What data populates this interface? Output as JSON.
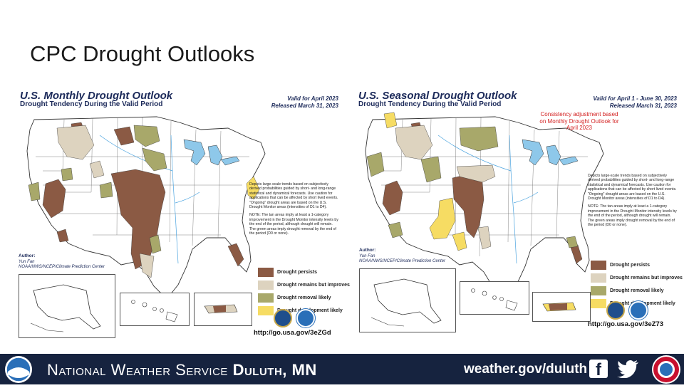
{
  "slide": {
    "title": "CPC Drought Outlooks"
  },
  "left": {
    "title": "U.S. Monthly Drought Outlook",
    "subtitle": "Drought Tendency During the Valid Period",
    "valid_line1": "Valid for April 2023",
    "valid_line2": "Released March 31, 2023",
    "notes1": "Depicts large-scale trends based on subjectively derived probabilities guided by short- and long-range statistical and dynamical forecasts. Use caution for applications that can be affected by short lived events. \"Ongoing\" drought areas are based on the U.S. Drought Monitor areas (intensities of D1 to D4).",
    "notes2": "NOTE: The tan areas imply at least a 1-category improvement in the Drought Monitor intensity levels by the end of the period, although drought will remain. The green areas imply drought removal by the end of the period (D0 or none).",
    "author_label": "Author:",
    "author_name": "Yun Fan",
    "author_org": "NOAA/NWS/NCEP/Climate Prediction Center",
    "url": "http://go.usa.gov/3eZGd"
  },
  "right": {
    "title": "U.S. Seasonal Drought Outlook",
    "subtitle": "Drought Tendency During the Valid Period",
    "valid_line1": "Valid for April 1 - June 30, 2023",
    "valid_line2": "Released March 31, 2023",
    "consistency": "Consistency adjustment based on Monthly Drought Outlook for April 2023",
    "notes1": "Depicts large-scale trends based on subjectively derived probabilities guided by short- and long-range statistical and dynamical forecasts. Use caution for applications that can be affected by short lived events. \"Ongoing\" drought areas are based on the U.S. Drought Monitor areas (intensities of D1 to D4).",
    "notes2": "NOTE: The tan areas imply at least a 1-category improvement in the Drought Monitor intensity levels by the end of the period, although drought will remain. The green areas imply drought removal by the end of the period (D0 or none).",
    "author_label": "Author:",
    "author_name": "Yun Fan",
    "author_org": "NOAA/NWS/NCEP/Climate Prediction Center",
    "url": "http://go.usa.gov/3eZ73"
  },
  "legend": {
    "persists": "Drought persists",
    "improves": "Drought remains but improves",
    "removal": "Drought removal likely",
    "development": "Drought development likely"
  },
  "colors": {
    "persists": "#8b5a44",
    "improves": "#ddd3bf",
    "removal": "#a8a86a",
    "development": "#f6dc63",
    "water": "#8ec8ea",
    "footer": "#16233f"
  },
  "footer": {
    "office_prefix": "National Weather Service",
    "office_name": "Duluth, MN",
    "site": "weather.gov/duluth"
  },
  "icons": [
    "noaa-logo",
    "facebook-icon",
    "twitter-icon",
    "nws-logo"
  ]
}
